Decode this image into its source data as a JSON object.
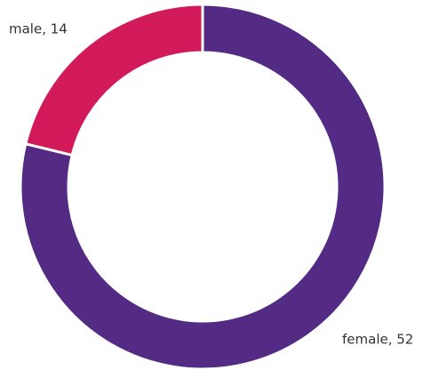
{
  "chart_data": {
    "type": "donut",
    "categories": [
      "female",
      "male"
    ],
    "values": [
      52,
      14
    ],
    "value_labels": [
      "female, 52",
      "male, 14"
    ],
    "colors": [
      "#532a84",
      "#d2195a"
    ]
  }
}
